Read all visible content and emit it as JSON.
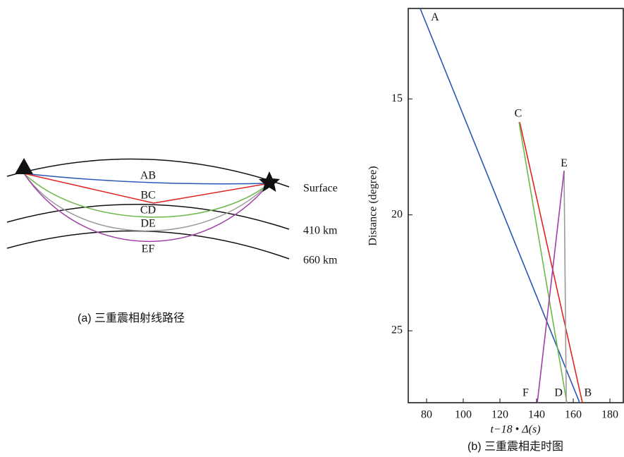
{
  "diagram": {
    "ray_labels": [
      "AB",
      "BC",
      "CD",
      "DE",
      "EF"
    ],
    "layer_labels": [
      "Surface",
      "410 km",
      "660 km"
    ],
    "caption": "(a) 三重震相射线路径"
  },
  "chart_data": {
    "type": "line",
    "caption": "(b) 三重震相走时图",
    "x_label": "t−18 • Δ(s)",
    "y_label": "Distance (degree)",
    "xlim": [
      70,
      187.3
    ],
    "xticks": [
      80,
      100,
      120,
      140,
      160,
      180
    ],
    "ylim": [
      11.1,
      28.1
    ],
    "yticks": [
      15,
      20,
      25
    ],
    "y_inverted": true,
    "frame": true,
    "series": [
      {
        "color": "#2a56b4",
        "x": [
          76.5,
          163.5
        ],
        "values": [
          11.1,
          28.1
        ]
      },
      {
        "color": "#e02424",
        "x": [
          130.8,
          165
        ],
        "values": [
          16,
          28.1
        ]
      },
      {
        "color": "#6cb84a",
        "x": [
          130.4,
          156.5
        ],
        "values": [
          16,
          28.1
        ]
      },
      {
        "color": "#9a9a9a",
        "x": [
          155,
          156.2
        ],
        "values": [
          18.1,
          28.1
        ]
      },
      {
        "color": "#a040a8",
        "x": [
          155,
          140.4
        ],
        "values": [
          18.1,
          28.1
        ]
      }
    ],
    "annotations": [
      {
        "text": "A",
        "x": 84.6,
        "y": 11.5
      },
      {
        "text": "C",
        "x": 130,
        "y": 15.65
      },
      {
        "text": "E",
        "x": 155,
        "y": 17.8
      },
      {
        "text": "F",
        "x": 134,
        "y": 27.7
      },
      {
        "text": "D",
        "x": 152,
        "y": 27.7
      },
      {
        "text": "B",
        "x": 168,
        "y": 27.7
      }
    ]
  }
}
